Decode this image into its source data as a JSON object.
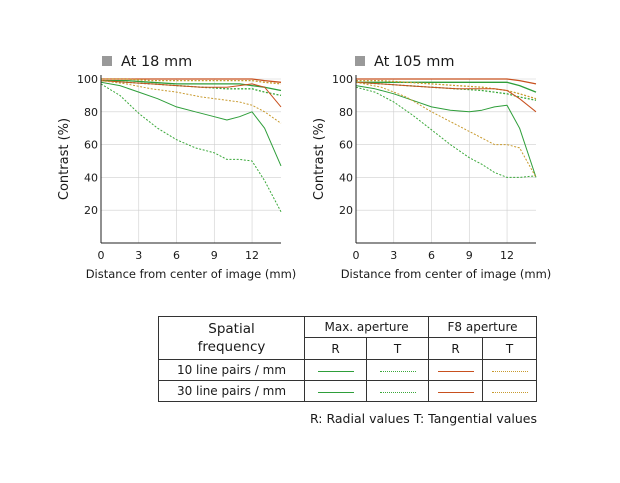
{
  "colors": {
    "max_r": "#2e9e3a",
    "max_t": "#3aa83a",
    "f8_r": "#c8501e",
    "f8_t": "#c89a2e",
    "axis": "#222222",
    "title_square": "#999999"
  },
  "chart_data": [
    {
      "type": "line",
      "title": "At 18 mm",
      "xlabel": "Distance from center of image (mm)",
      "ylabel": "Contrast (%)",
      "xlim": [
        0,
        14.3
      ],
      "ylim": [
        0,
        100
      ],
      "xticks": [
        "0",
        "3",
        "6",
        "9",
        "12"
      ],
      "yticks": [
        "20",
        "40",
        "60",
        "80",
        "100"
      ],
      "grid": true,
      "series": [
        {
          "key": "max_r_10",
          "style": "max_r",
          "weight": "bold",
          "x": [
            0,
            2,
            4,
            6,
            8,
            10,
            11,
            12,
            13,
            14.3
          ],
          "y": [
            99,
            99,
            98,
            97,
            97,
            97,
            97,
            96,
            95,
            93
          ]
        },
        {
          "key": "max_t_10",
          "style": "max_t",
          "weight": "bold",
          "x": [
            0,
            2,
            4,
            6,
            8,
            10,
            11,
            12,
            13,
            14.3
          ],
          "y": [
            99,
            98,
            97,
            96,
            95,
            94,
            94,
            94,
            92,
            90
          ]
        },
        {
          "key": "f8_r_10",
          "style": "f8_r",
          "weight": "bold",
          "x": [
            0,
            2,
            4,
            6,
            8,
            10,
            11,
            12,
            13,
            14.3
          ],
          "y": [
            100,
            100,
            100,
            100,
            100,
            100,
            100,
            100,
            99,
            98
          ]
        },
        {
          "key": "f8_t_10",
          "style": "f8_t",
          "weight": "bold",
          "x": [
            0,
            2,
            4,
            6,
            8,
            10,
            11,
            12,
            13,
            14.3
          ],
          "y": [
            100,
            100,
            99,
            99,
            99,
            99,
            99,
            99,
            98,
            97
          ]
        },
        {
          "key": "max_r_30",
          "style": "max_r",
          "weight": "thin",
          "x": [
            0,
            1.5,
            3,
            4.5,
            6,
            7.5,
            9,
            10,
            11,
            12,
            13,
            14.3
          ],
          "y": [
            98,
            96,
            92,
            88,
            83,
            80,
            77,
            75,
            77,
            80,
            70,
            47
          ]
        },
        {
          "key": "max_t_30",
          "style": "max_t",
          "weight": "thin",
          "x": [
            0,
            1.5,
            3,
            4.5,
            6,
            7.5,
            9,
            10,
            11,
            12,
            13,
            14.3
          ],
          "y": [
            97,
            90,
            79,
            70,
            63,
            58,
            55,
            51,
            51,
            50,
            38,
            19
          ]
        },
        {
          "key": "f8_r_30",
          "style": "f8_r",
          "weight": "thin",
          "x": [
            0,
            2,
            4,
            6,
            8,
            10,
            11,
            12,
            13,
            14.3
          ],
          "y": [
            99,
            98,
            97,
            96,
            95,
            95,
            96,
            97,
            95,
            83
          ]
        },
        {
          "key": "f8_t_30",
          "style": "f8_t",
          "weight": "thin",
          "x": [
            0,
            2,
            4,
            6,
            8,
            10,
            11,
            12,
            13,
            14.3
          ],
          "y": [
            99,
            97,
            94,
            92,
            89,
            87,
            86,
            84,
            80,
            73
          ]
        }
      ]
    },
    {
      "type": "line",
      "title": "At 105 mm",
      "xlabel": "Distance from center of image (mm)",
      "ylabel": "Contrast (%)",
      "xlim": [
        0,
        14.3
      ],
      "ylim": [
        0,
        100
      ],
      "xticks": [
        "0",
        "3",
        "6",
        "9",
        "12"
      ],
      "yticks": [
        "20",
        "40",
        "60",
        "80",
        "100"
      ],
      "grid": true,
      "series": [
        {
          "key": "max_r_10",
          "style": "max_r",
          "weight": "bold",
          "x": [
            0,
            2,
            4,
            6,
            8,
            10,
            12,
            13,
            14.3
          ],
          "y": [
            98,
            98,
            98,
            98,
            98,
            98,
            98,
            96,
            92
          ]
        },
        {
          "key": "max_t_10",
          "style": "max_t",
          "weight": "bold",
          "x": [
            0,
            2,
            4,
            6,
            8,
            10,
            12,
            13,
            14.3
          ],
          "y": [
            98,
            97,
            96,
            95,
            94,
            93,
            91,
            89,
            87
          ]
        },
        {
          "key": "f8_r_10",
          "style": "f8_r",
          "weight": "bold",
          "x": [
            0,
            2,
            4,
            6,
            8,
            10,
            12,
            13,
            14.3
          ],
          "y": [
            100,
            100,
            100,
            100,
            100,
            100,
            100,
            99,
            97
          ]
        },
        {
          "key": "f8_t_10",
          "style": "f8_t",
          "weight": "bold",
          "x": [
            0,
            2,
            4,
            6,
            8,
            10,
            12,
            13,
            14.3
          ],
          "y": [
            99,
            99,
            98,
            97,
            96,
            95,
            93,
            91,
            88
          ]
        },
        {
          "key": "max_r_30",
          "style": "max_r",
          "weight": "thin",
          "x": [
            0,
            1.5,
            3,
            4.5,
            6,
            7.5,
            9,
            10,
            11,
            12,
            13,
            14.3
          ],
          "y": [
            96,
            94,
            91,
            87,
            83,
            81,
            80,
            81,
            83,
            84,
            70,
            40
          ]
        },
        {
          "key": "max_t_30",
          "style": "max_t",
          "weight": "thin",
          "x": [
            0,
            1.5,
            3,
            4.5,
            6,
            7.5,
            9,
            10,
            11,
            12,
            13,
            14.3
          ],
          "y": [
            95,
            92,
            86,
            78,
            69,
            60,
            52,
            48,
            43,
            40,
            40,
            41
          ]
        },
        {
          "key": "f8_r_30",
          "style": "f8_r",
          "weight": "thin",
          "x": [
            0,
            2,
            4,
            6,
            8,
            10,
            11,
            12,
            13,
            14.3
          ],
          "y": [
            98,
            97,
            96,
            95,
            94,
            94,
            94,
            93,
            88,
            80
          ]
        },
        {
          "key": "f8_t_30",
          "style": "f8_t",
          "weight": "thin",
          "x": [
            0,
            2,
            4,
            6,
            8,
            10,
            11,
            12,
            13,
            14.3
          ],
          "y": [
            98,
            95,
            89,
            80,
            72,
            64,
            60,
            60,
            58,
            40
          ]
        }
      ]
    }
  ],
  "legend": {
    "spatial_header_line1": "Spatial",
    "spatial_header_line2": "frequency",
    "max_aperture": "Max. aperture",
    "f8_aperture": "F8 aperture",
    "r": "R",
    "t": "T",
    "rows": [
      {
        "label": "10 line pairs / mm",
        "weight": "bold"
      },
      {
        "label": "30 line pairs / mm",
        "weight": "thin"
      }
    ]
  },
  "caption": "R: Radial values  T: Tangential values"
}
